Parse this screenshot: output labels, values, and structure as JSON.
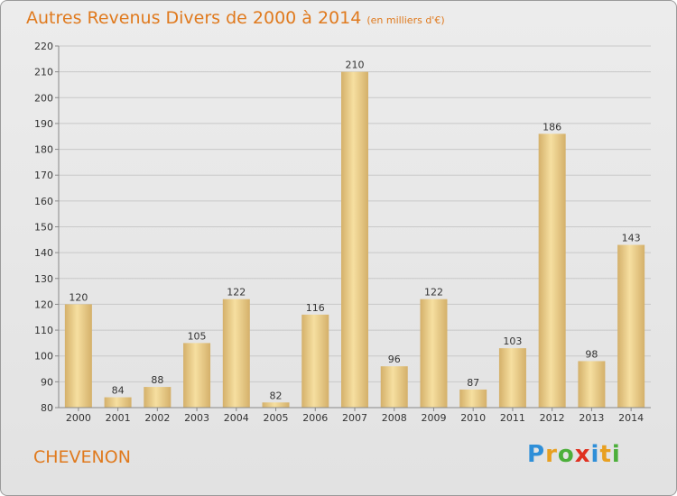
{
  "title": "Autres Revenus Divers de 2000 à 2014",
  "subtitle": "(en milliers d'€)",
  "commune": "CHEVENON",
  "logo": {
    "letters": [
      {
        "ch": "P",
        "color": "#2f8fd8"
      },
      {
        "ch": "r",
        "color": "#e8a020"
      },
      {
        "ch": "o",
        "color": "#4caf3a"
      },
      {
        "ch": "x",
        "color": "#e03020"
      },
      {
        "ch": "i",
        "color": "#2f8fd8"
      },
      {
        "ch": "t",
        "color": "#e8a020"
      },
      {
        "ch": "i",
        "color": "#4caf3a"
      }
    ]
  },
  "colors": {
    "title": "#e07a1e",
    "bar_light": "#f6dfa0",
    "bar_dark": "#d4b06a",
    "grid": "#c8c8c8",
    "axis": "#888888"
  },
  "chart_data": {
    "type": "bar",
    "categories": [
      "2000",
      "2001",
      "2002",
      "2003",
      "2004",
      "2005",
      "2006",
      "2007",
      "2008",
      "2009",
      "2010",
      "2011",
      "2012",
      "2013",
      "2014"
    ],
    "values": [
      120,
      84,
      88,
      105,
      122,
      82,
      116,
      210,
      96,
      122,
      87,
      103,
      186,
      98,
      143
    ],
    "ylim": [
      80,
      220
    ],
    "yticks": [
      80,
      90,
      100,
      110,
      120,
      130,
      140,
      150,
      160,
      170,
      180,
      190,
      200,
      210,
      220
    ],
    "grid": true,
    "show_value_labels": true
  }
}
